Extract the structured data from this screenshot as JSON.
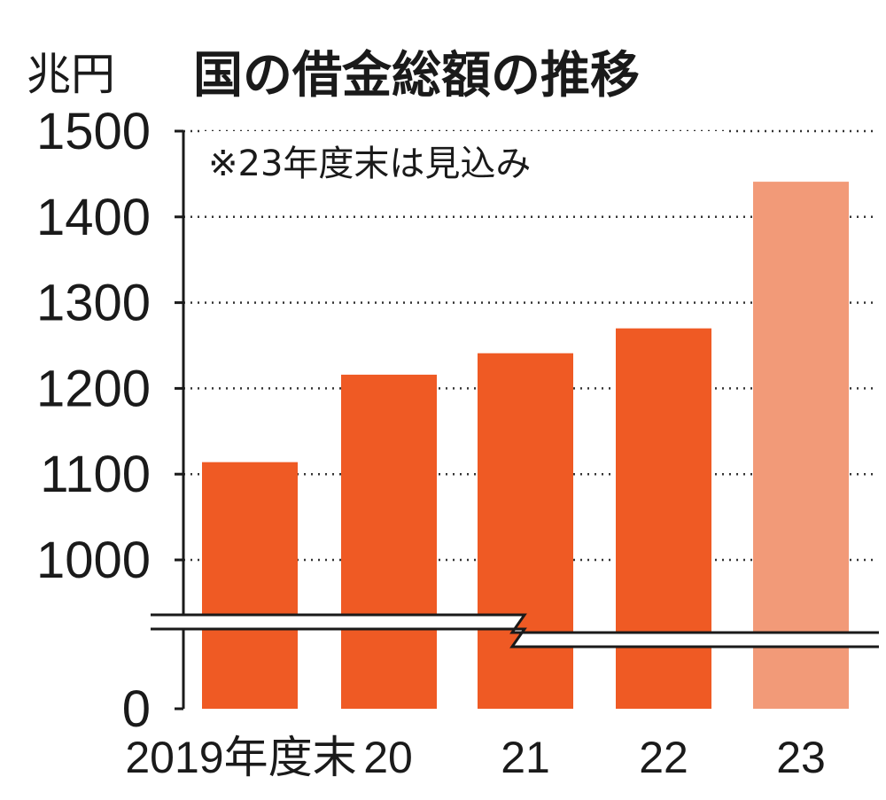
{
  "chart_data": {
    "type": "bar",
    "title": "国の借金総額の推移",
    "unit_label": "兆円",
    "note": "※23年度末は見込み",
    "categories": [
      "2019年度末",
      "20",
      "21",
      "22",
      "23"
    ],
    "values": [
      1114,
      1216,
      1241,
      1270,
      1441
    ],
    "estimated": [
      false,
      false,
      false,
      false,
      true
    ],
    "y_ticks": [
      0,
      1000,
      1100,
      1200,
      1300,
      1400,
      1500
    ],
    "ylim": [
      0,
      1500
    ],
    "axis_break": true,
    "grid": "dotted horizontal",
    "colors": {
      "bar": "#ef5a24",
      "bar_estimated": "#f29a78",
      "text": "#1a1a1a",
      "grid": "#333333"
    }
  }
}
